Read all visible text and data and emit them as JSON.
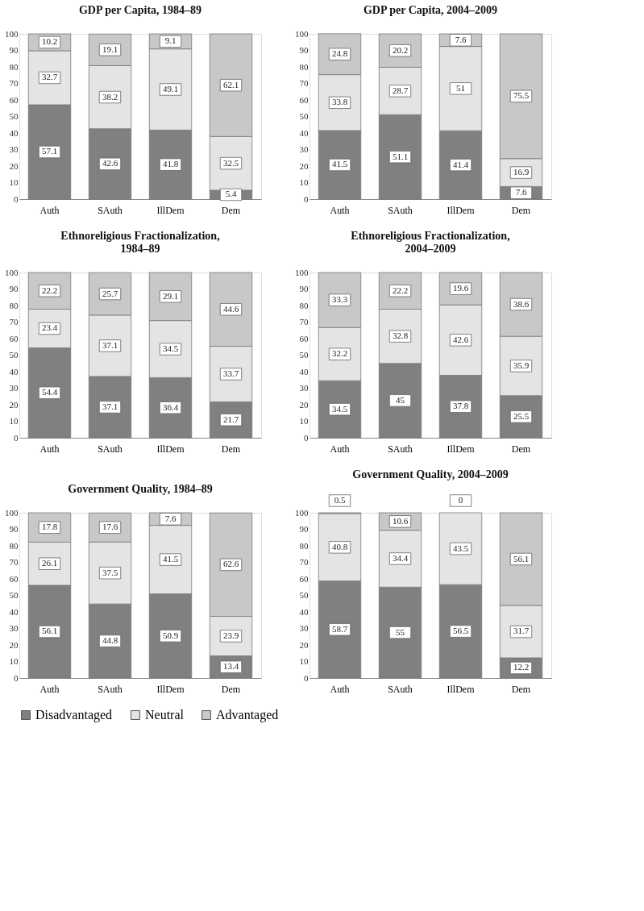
{
  "chart_data": [
    {
      "type": "bar",
      "title": "GDP per Capita, 1984–89",
      "categories": [
        "Auth",
        "SAuth",
        "IllDem",
        "Dem"
      ],
      "stacked": true,
      "data_labels": true,
      "legend": "bottom",
      "ylim": [
        0,
        100
      ],
      "yticks": [
        0,
        10,
        20,
        30,
        40,
        50,
        60,
        70,
        80,
        90,
        100
      ],
      "grid": false,
      "series": [
        {
          "name": "Disadvantaged",
          "color": "#808080",
          "values": [
            57.1,
            42.6,
            41.8,
            5.4
          ]
        },
        {
          "name": "Neutral",
          "color": "#e4e4e4",
          "values": [
            32.7,
            38.2,
            49.1,
            32.5
          ]
        },
        {
          "name": "Advantaged",
          "color": "#c8c8c8",
          "values": [
            10.2,
            19.1,
            9.1,
            62.1
          ]
        }
      ]
    },
    {
      "type": "bar",
      "title": "GDP per Capita, 2004–2009",
      "categories": [
        "Auth",
        "SAuth",
        "IllDem",
        "Dem"
      ],
      "stacked": true,
      "data_labels": true,
      "legend": "bottom",
      "ylim": [
        0,
        100
      ],
      "yticks": [
        0,
        10,
        20,
        30,
        40,
        50,
        60,
        70,
        80,
        90,
        100
      ],
      "grid": false,
      "series": [
        {
          "name": "Disadvantaged",
          "color": "#808080",
          "values": [
            41.5,
            51.1,
            41.4,
            7.6
          ]
        },
        {
          "name": "Neutral",
          "color": "#e4e4e4",
          "values": [
            33.8,
            28.7,
            51,
            16.9
          ]
        },
        {
          "name": "Advantaged",
          "color": "#c8c8c8",
          "values": [
            24.8,
            20.2,
            7.6,
            75.5
          ]
        }
      ]
    },
    {
      "type": "bar",
      "title": "Ethnoreligious Fractionalization, 1984–89",
      "categories": [
        "Auth",
        "SAuth",
        "IllDem",
        "Dem"
      ],
      "stacked": true,
      "data_labels": true,
      "legend": "bottom",
      "ylim": [
        0,
        100
      ],
      "yticks": [
        0,
        10,
        20,
        30,
        40,
        50,
        60,
        70,
        80,
        90,
        100
      ],
      "grid": false,
      "series": [
        {
          "name": "Disadvantaged",
          "color": "#808080",
          "values": [
            54.4,
            37.1,
            36.4,
            21.7
          ]
        },
        {
          "name": "Neutral",
          "color": "#e4e4e4",
          "values": [
            23.4,
            37.1,
            34.5,
            33.7
          ]
        },
        {
          "name": "Advantaged",
          "color": "#c8c8c8",
          "values": [
            22.2,
            25.7,
            29.1,
            44.6
          ]
        }
      ]
    },
    {
      "type": "bar",
      "title": "Ethnoreligious Fractionalization, 2004–2009",
      "categories": [
        "Auth",
        "SAuth",
        "IllDem",
        "Dem"
      ],
      "stacked": true,
      "data_labels": true,
      "legend": "bottom",
      "ylim": [
        0,
        100
      ],
      "yticks": [
        0,
        10,
        20,
        30,
        40,
        50,
        60,
        70,
        80,
        90,
        100
      ],
      "grid": false,
      "series": [
        {
          "name": "Disadvantaged",
          "color": "#808080",
          "values": [
            34.5,
            45,
            37.8,
            25.5
          ]
        },
        {
          "name": "Neutral",
          "color": "#e4e4e4",
          "values": [
            32.2,
            32.8,
            42.6,
            35.9
          ]
        },
        {
          "name": "Advantaged",
          "color": "#c8c8c8",
          "values": [
            33.3,
            22.2,
            19.6,
            38.6
          ]
        }
      ]
    },
    {
      "type": "bar",
      "title": "Government Quality, 1984–89",
      "categories": [
        "Auth",
        "SAuth",
        "IllDem",
        "Dem"
      ],
      "stacked": true,
      "data_labels": true,
      "legend": "bottom",
      "ylim": [
        0,
        100
      ],
      "yticks": [
        0,
        10,
        20,
        30,
        40,
        50,
        60,
        70,
        80,
        90,
        100
      ],
      "grid": false,
      "series": [
        {
          "name": "Disadvantaged",
          "color": "#808080",
          "values": [
            56.1,
            44.8,
            50.9,
            13.4
          ]
        },
        {
          "name": "Neutral",
          "color": "#e4e4e4",
          "values": [
            26.1,
            37.5,
            41.5,
            23.9
          ]
        },
        {
          "name": "Advantaged",
          "color": "#c8c8c8",
          "values": [
            17.8,
            17.6,
            7.6,
            62.6
          ]
        }
      ]
    },
    {
      "type": "bar",
      "title": "Government Quality, 2004–2009",
      "categories": [
        "Auth",
        "SAuth",
        "IllDem",
        "Dem"
      ],
      "stacked": true,
      "data_labels": true,
      "legend": "bottom",
      "ylim": [
        0,
        100
      ],
      "yticks": [
        0,
        10,
        20,
        30,
        40,
        50,
        60,
        70,
        80,
        90,
        100
      ],
      "grid": false,
      "series": [
        {
          "name": "Disadvantaged",
          "color": "#808080",
          "values": [
            58.7,
            55,
            56.5,
            12.2
          ]
        },
        {
          "name": "Neutral",
          "color": "#e4e4e4",
          "values": [
            40.8,
            34.4,
            43.5,
            31.7
          ]
        },
        {
          "name": "Advantaged",
          "color": "#c8c8c8",
          "values": [
            0.5,
            10.6,
            0,
            56.1
          ]
        }
      ]
    }
  ]
}
